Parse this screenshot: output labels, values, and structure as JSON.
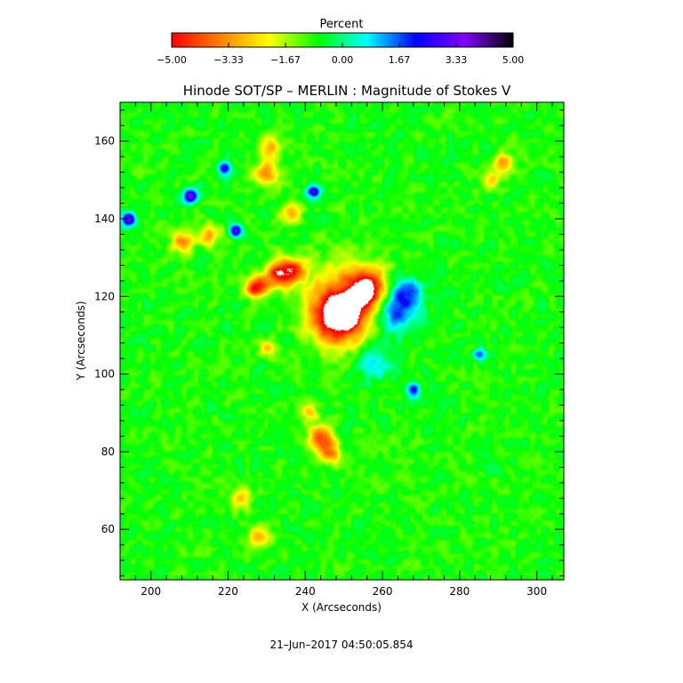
{
  "chart_data": {
    "type": "heatmap",
    "title": "Hinode SOT/SP – MERLIN : Magnitude of Stokes V",
    "xlabel": "X (Arcseconds)",
    "ylabel": "Y (Arcseconds)",
    "xlim": [
      192,
      307
    ],
    "ylim": [
      47,
      170
    ],
    "xticks": [
      200,
      220,
      240,
      260,
      280,
      300
    ],
    "yticks": [
      60,
      80,
      100,
      120,
      140,
      160
    ],
    "grid": false,
    "colorbar": {
      "title": "Percent",
      "range": [
        -5.0,
        5.0
      ],
      "ticks": [
        "−5.00",
        "−3.33",
        "−1.67",
        "0.00",
        "1.67",
        "3.33",
        "5.00"
      ],
      "colors": [
        "#ff0000",
        "#ff8000",
        "#ffff00",
        "#00ff00",
        "#00ffff",
        "#0000ff",
        "#8000ff",
        "#000000"
      ],
      "placement": "top"
    },
    "background_value": -0.8,
    "features": [
      {
        "x": 250,
        "y": 116,
        "amplitude": -8.0,
        "spread": 2.0
      },
      {
        "x": 248,
        "y": 115,
        "amplitude": -4.5,
        "spread": 4.5
      },
      {
        "x": 256,
        "y": 122,
        "amplitude": -4.2,
        "spread": 3.5
      },
      {
        "x": 250,
        "y": 119,
        "amplitude": -2.0,
        "spread": 7.5
      },
      {
        "x": 233,
        "y": 126,
        "amplitude": -3.8,
        "spread": 2.5
      },
      {
        "x": 237,
        "y": 127,
        "amplitude": -2.6,
        "spread": 2.2
      },
      {
        "x": 228,
        "y": 123,
        "amplitude": -2.4,
        "spread": 2.0
      },
      {
        "x": 226,
        "y": 122,
        "amplitude": -2.5,
        "spread": 1.5
      },
      {
        "x": 208,
        "y": 134,
        "amplitude": -2.4,
        "spread": 2.0
      },
      {
        "x": 215,
        "y": 136,
        "amplitude": -2.4,
        "spread": 2.0
      },
      {
        "x": 230,
        "y": 152,
        "amplitude": -2.4,
        "spread": 2.2
      },
      {
        "x": 231,
        "y": 158,
        "amplitude": -2.2,
        "spread": 2.0
      },
      {
        "x": 236,
        "y": 141,
        "amplitude": -2.0,
        "spread": 2.0
      },
      {
        "x": 230,
        "y": 107,
        "amplitude": -2.2,
        "spread": 1.5
      },
      {
        "x": 244,
        "y": 84,
        "amplitude": -3.0,
        "spread": 2.2
      },
      {
        "x": 246,
        "y": 80,
        "amplitude": -2.8,
        "spread": 2.0
      },
      {
        "x": 241,
        "y": 90,
        "amplitude": -2.0,
        "spread": 1.5
      },
      {
        "x": 223,
        "y": 68,
        "amplitude": -2.0,
        "spread": 2.0
      },
      {
        "x": 228,
        "y": 58,
        "amplitude": -2.0,
        "spread": 2.0
      },
      {
        "x": 291,
        "y": 154,
        "amplitude": -2.4,
        "spread": 2.0
      },
      {
        "x": 288,
        "y": 150,
        "amplitude": -1.6,
        "spread": 1.5
      },
      {
        "x": 210,
        "y": 146,
        "amplitude": 4.0,
        "spread": 1.3
      },
      {
        "x": 219,
        "y": 153,
        "amplitude": 3.6,
        "spread": 1.2
      },
      {
        "x": 194,
        "y": 140,
        "amplitude": 4.2,
        "spread": 1.3
      },
      {
        "x": 222,
        "y": 137,
        "amplitude": 3.8,
        "spread": 1.2
      },
      {
        "x": 242,
        "y": 147,
        "amplitude": 3.6,
        "spread": 1.2
      },
      {
        "x": 268,
        "y": 96,
        "amplitude": 3.4,
        "spread": 1.2
      },
      {
        "x": 263,
        "y": 116,
        "amplitude": 2.6,
        "spread": 4.0
      },
      {
        "x": 266,
        "y": 121,
        "amplitude": 2.2,
        "spread": 3.0
      },
      {
        "x": 258,
        "y": 103,
        "amplitude": 1.8,
        "spread": 3.0
      },
      {
        "x": 285,
        "y": 105,
        "amplitude": 2.2,
        "spread": 1.2
      }
    ]
  },
  "timestamp": "21–Jun–2017 04:50:05.854"
}
